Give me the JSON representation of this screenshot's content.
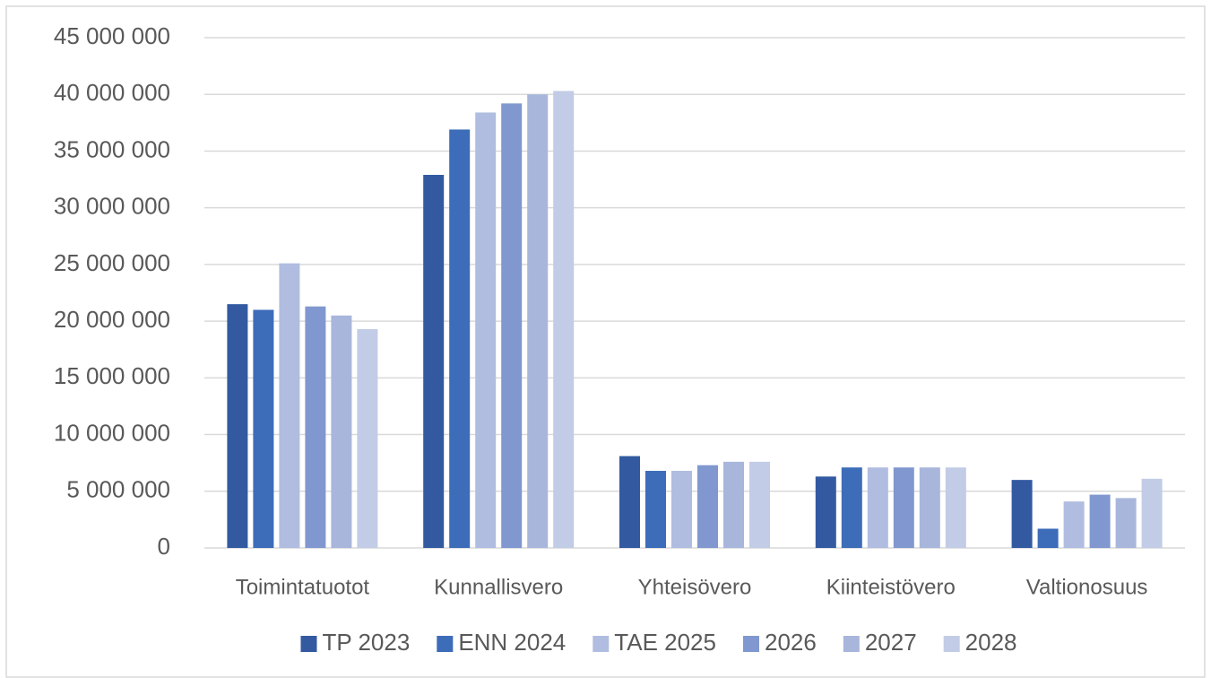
{
  "chart_data": {
    "type": "bar",
    "categories": [
      "Toimintatuotot",
      "Kunnallisvero",
      "Yhteisövero",
      "Kiinteistövero",
      "Valtionosuus"
    ],
    "series": [
      {
        "name": "TP 2023",
        "color": "#335aa1",
        "values": [
          21500000,
          32900000,
          8100000,
          6300000,
          6000000
        ]
      },
      {
        "name": "ENN 2024",
        "color": "#3d6cb9",
        "values": [
          21000000,
          36900000,
          6800000,
          7100000,
          1700000
        ]
      },
      {
        "name": "TAE 2025",
        "color": "#b0bde0",
        "values": [
          25100000,
          38400000,
          6800000,
          7100000,
          4100000
        ]
      },
      {
        "name": "2026",
        "color": "#8098cf",
        "values": [
          21300000,
          39200000,
          7300000,
          7100000,
          4700000
        ]
      },
      {
        "name": "2027",
        "color": "#a8b6dc",
        "values": [
          20500000,
          40000000,
          7600000,
          7100000,
          4400000
        ]
      },
      {
        "name": "2028",
        "color": "#c2cce6",
        "values": [
          19300000,
          40300000,
          7600000,
          7100000,
          6100000
        ]
      }
    ],
    "ylim": [
      0,
      45000000
    ],
    "yticks": [
      0,
      {
        "value": 5000000,
        "label": "5 000 000"
      },
      {
        "value": 10000000,
        "label": "10 000 000"
      },
      {
        "value": 15000000,
        "label": "15 000 000"
      },
      {
        "value": 20000000,
        "label": "20 000 000"
      },
      {
        "value": 25000000,
        "label": "25 000 000"
      },
      {
        "value": 30000000,
        "label": "30 000 000"
      },
      {
        "value": 35000000,
        "label": "35 000 000"
      },
      {
        "value": 40000000,
        "label": "40 000 000"
      },
      {
        "value": 45000000,
        "label": "45 000 000"
      }
    ],
    "grid": true,
    "legend": "bottom"
  }
}
